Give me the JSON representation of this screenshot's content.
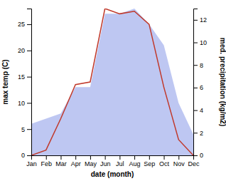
{
  "chart_data": {
    "type": "line",
    "categories": [
      "Jan",
      "Feb",
      "Mar",
      "Apr",
      "May",
      "Jun",
      "Jul",
      "Aug",
      "Sep",
      "Oct",
      "Nov",
      "Dec"
    ],
    "series": [
      {
        "type": "area",
        "color": "#b3bdf0",
        "values": [
          6,
          7,
          8,
          13,
          13,
          27,
          27,
          28,
          25,
          21,
          10,
          4
        ]
      },
      {
        "type": "line",
        "color": "#c0392b",
        "values": [
          0,
          1,
          7,
          13.5,
          14,
          28,
          27,
          27.5,
          25,
          13,
          3,
          0
        ]
      }
    ],
    "xlabel": "date (month)",
    "ylabel": "max temp (C)",
    "y2label": "med. precipitation (kg/m2)",
    "ylim": [
      0,
      28
    ],
    "yticks": [
      0,
      5,
      10,
      15,
      20,
      25
    ],
    "y2lim": [
      0,
      13
    ],
    "y2ticks": [
      0,
      2,
      4,
      6,
      8,
      10,
      12
    ],
    "grid": false
  }
}
